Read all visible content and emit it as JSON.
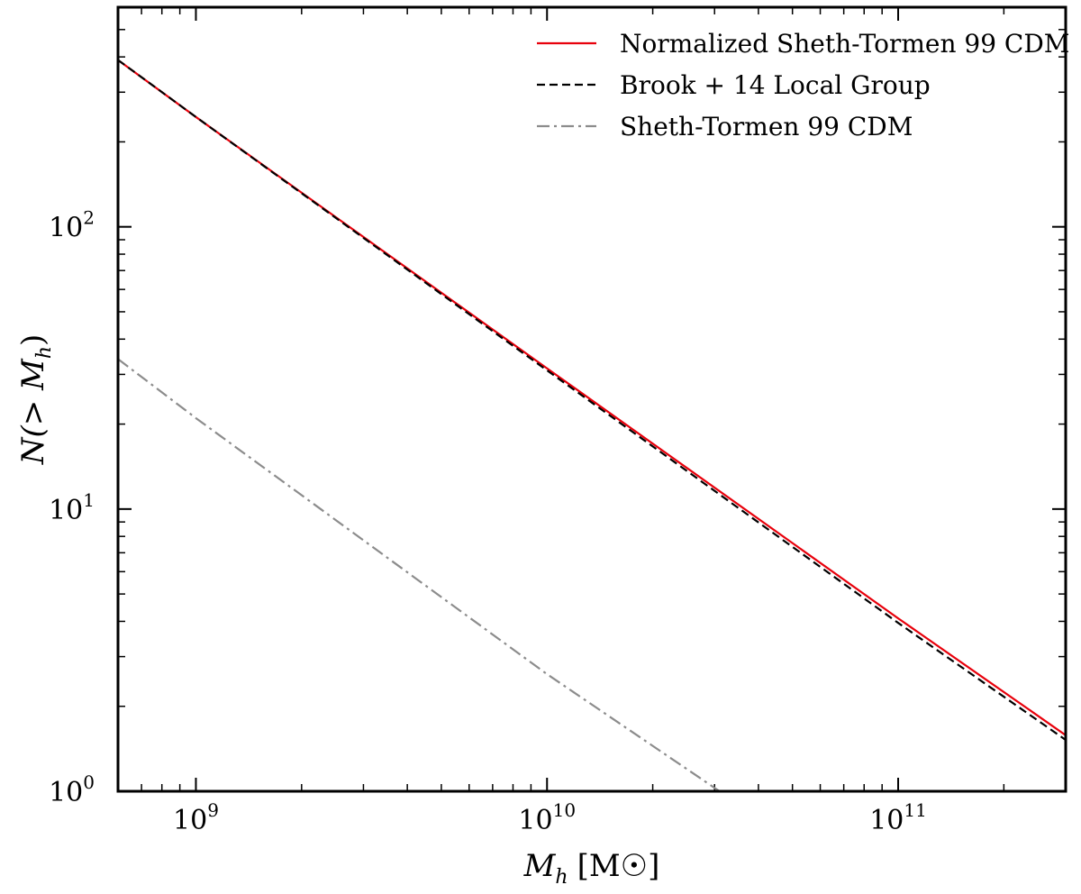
{
  "chart_data": {
    "type": "line",
    "title": "",
    "xlabel": {
      "main": "M",
      "sub": "h",
      "unit": "[M☉]"
    },
    "ylabel": {
      "main": "N(> M",
      "sub": "h",
      "close": ")"
    },
    "x_scale": "log",
    "y_scale": "log",
    "xlim": [
      600000000.0,
      300000000000.0
    ],
    "ylim": [
      1,
      600
    ],
    "x_major_ticks": [
      {
        "value": 1000000000.0,
        "base": "10",
        "exp": "9"
      },
      {
        "value": 10000000000.0,
        "base": "10",
        "exp": "10"
      },
      {
        "value": 100000000000.0,
        "base": "10",
        "exp": "11"
      }
    ],
    "y_major_ticks": [
      {
        "value": 1,
        "base": "10",
        "exp": "0"
      },
      {
        "value": 10,
        "base": "10",
        "exp": "1"
      },
      {
        "value": 100,
        "base": "10",
        "exp": "2"
      }
    ],
    "grid": false,
    "legend_position": "top-right",
    "series": [
      {
        "name": "Normalized Sheth-Tormen 99 CDM",
        "color": "#e8000b",
        "style": "solid",
        "x": [
          600000000.0,
          1000000000.0,
          10000000000.0,
          100000000000.0,
          300000000000.0
        ],
        "y": [
          390,
          245,
          31.5,
          4.1,
          1.58
        ]
      },
      {
        "name": "Brook + 14 Local Group",
        "color": "#000000",
        "style": "dashed",
        "x": [
          600000000.0,
          1000000000.0,
          10000000000.0,
          100000000000.0,
          300000000000.0
        ],
        "y": [
          390,
          245,
          31.0,
          3.95,
          1.52
        ]
      },
      {
        "name": "Sheth-Tormen 99 CDM",
        "color": "#8c8c8c",
        "style": "dashdot",
        "x": [
          600000000.0,
          1000000000.0,
          10000000000.0,
          31000000000.0
        ],
        "y": [
          34,
          21,
          2.6,
          1.0
        ]
      }
    ]
  }
}
